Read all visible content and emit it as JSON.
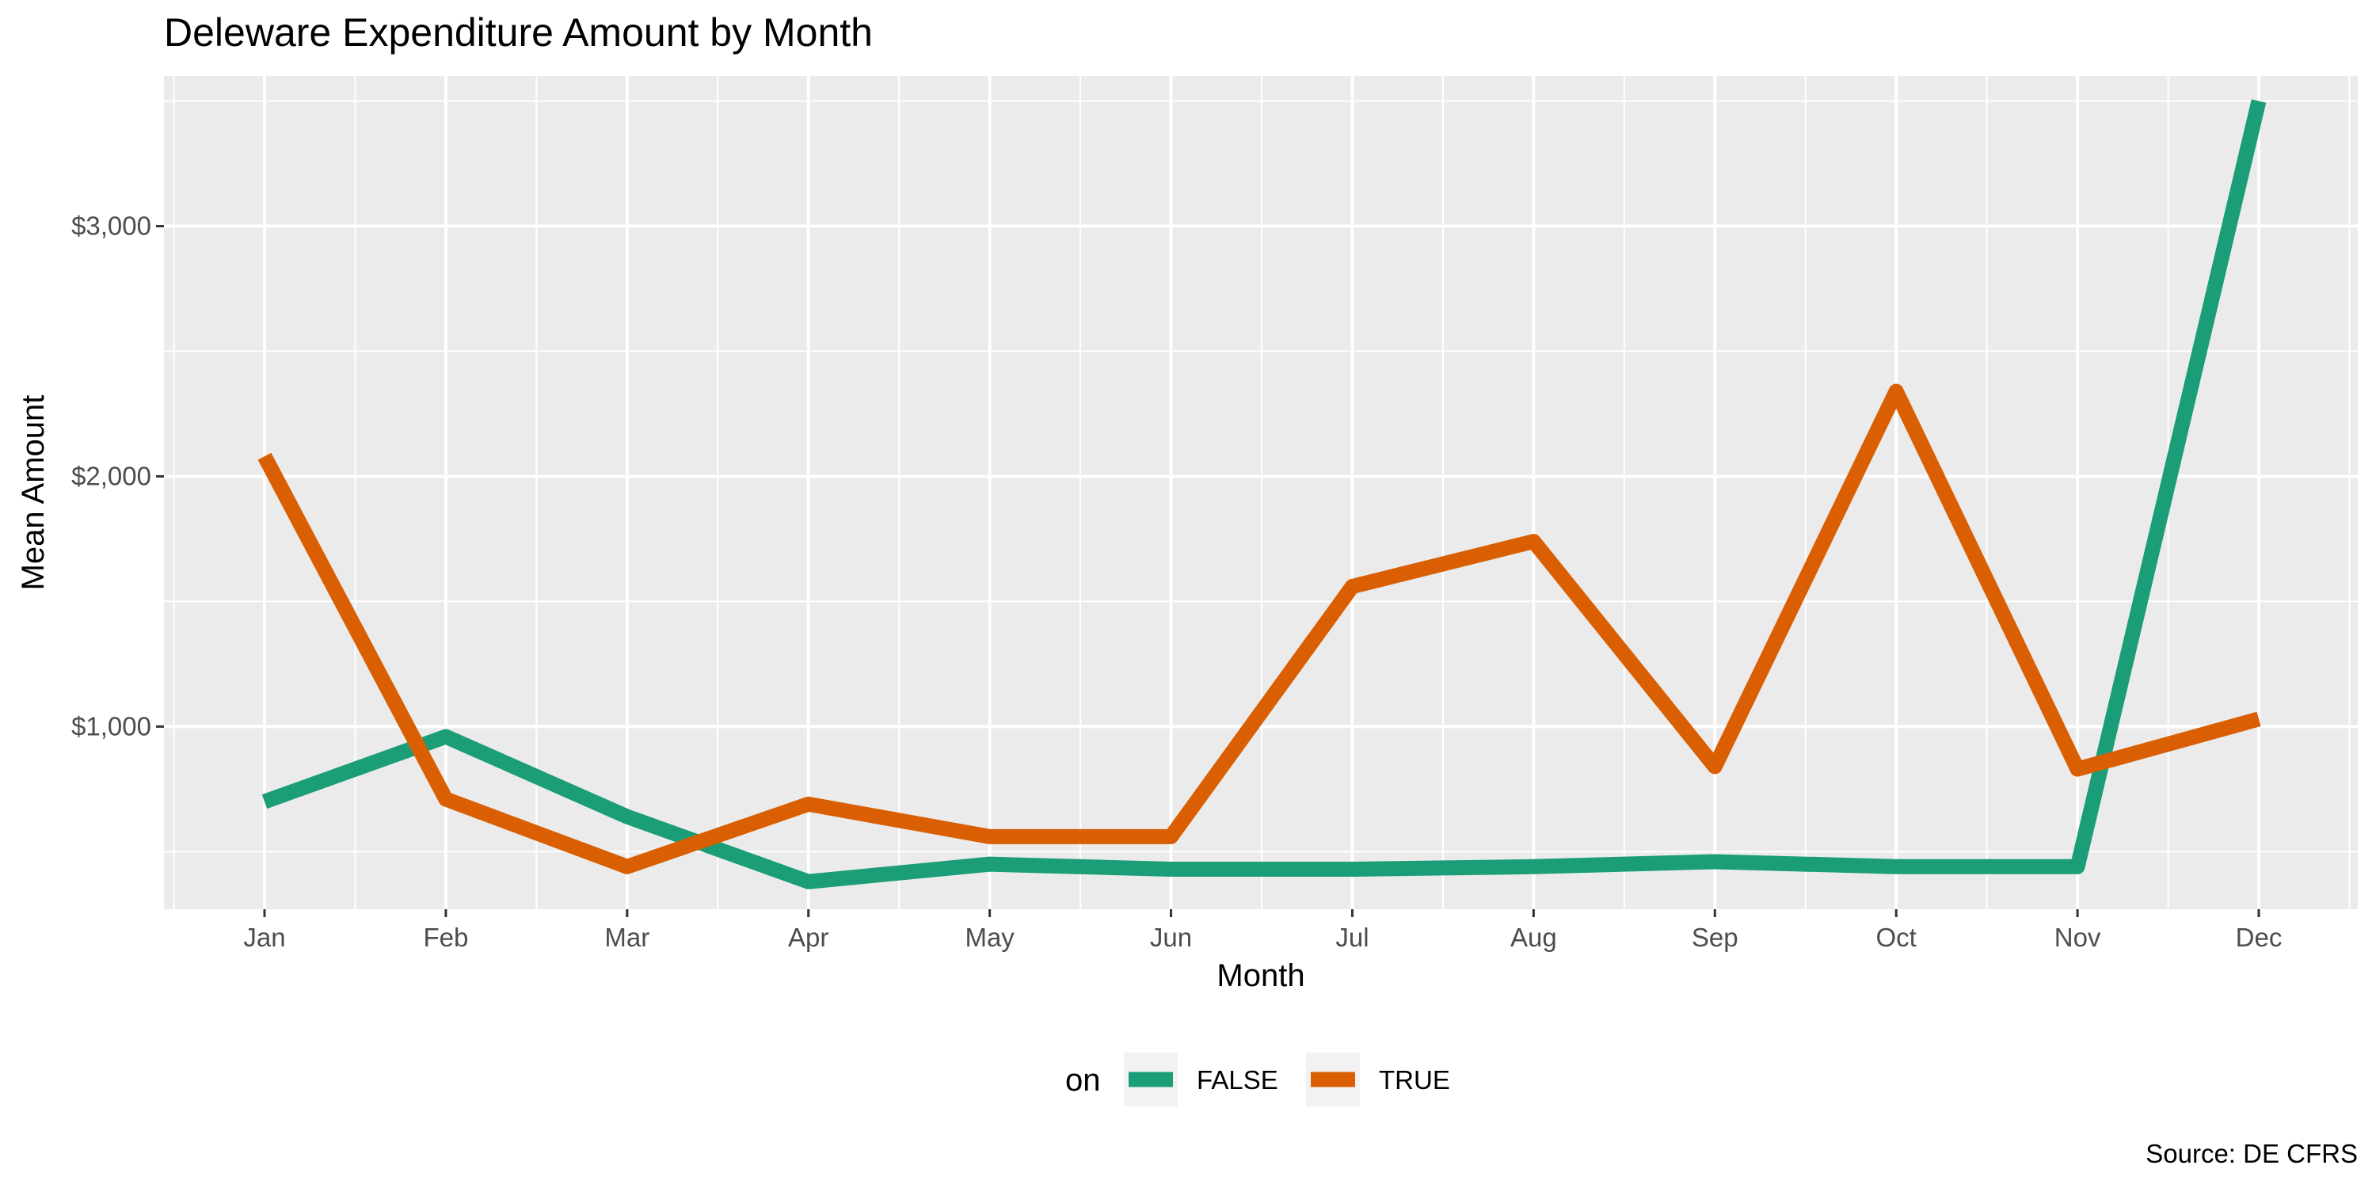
{
  "chart_data": {
    "type": "line",
    "title": "Deleware Expenditure Amount by Month",
    "xlabel": "Month",
    "ylabel": "Mean Amount",
    "caption": "Source: DE CFRS",
    "categories": [
      "Jan",
      "Feb",
      "Mar",
      "Apr",
      "May",
      "Jun",
      "Jul",
      "Aug",
      "Sep",
      "Oct",
      "Nov",
      "Dec"
    ],
    "ylim": [
      270,
      3600
    ],
    "yticks": [
      1000,
      2000,
      3000
    ],
    "ytick_labels": [
      "$1,000",
      "$2,000",
      "$3,000"
    ],
    "grid": true,
    "legend": {
      "title": "on",
      "position": "bottom"
    },
    "series": [
      {
        "name": "FALSE",
        "color": "#1b9e77",
        "values": [
          700,
          960,
          640,
          380,
          450,
          430,
          430,
          440,
          460,
          440,
          440,
          3500
        ]
      },
      {
        "name": "TRUE",
        "color": "#d95f02",
        "values": [
          2080,
          710,
          440,
          690,
          560,
          560,
          1560,
          1740,
          840,
          2340,
          830,
          1030
        ]
      }
    ]
  }
}
